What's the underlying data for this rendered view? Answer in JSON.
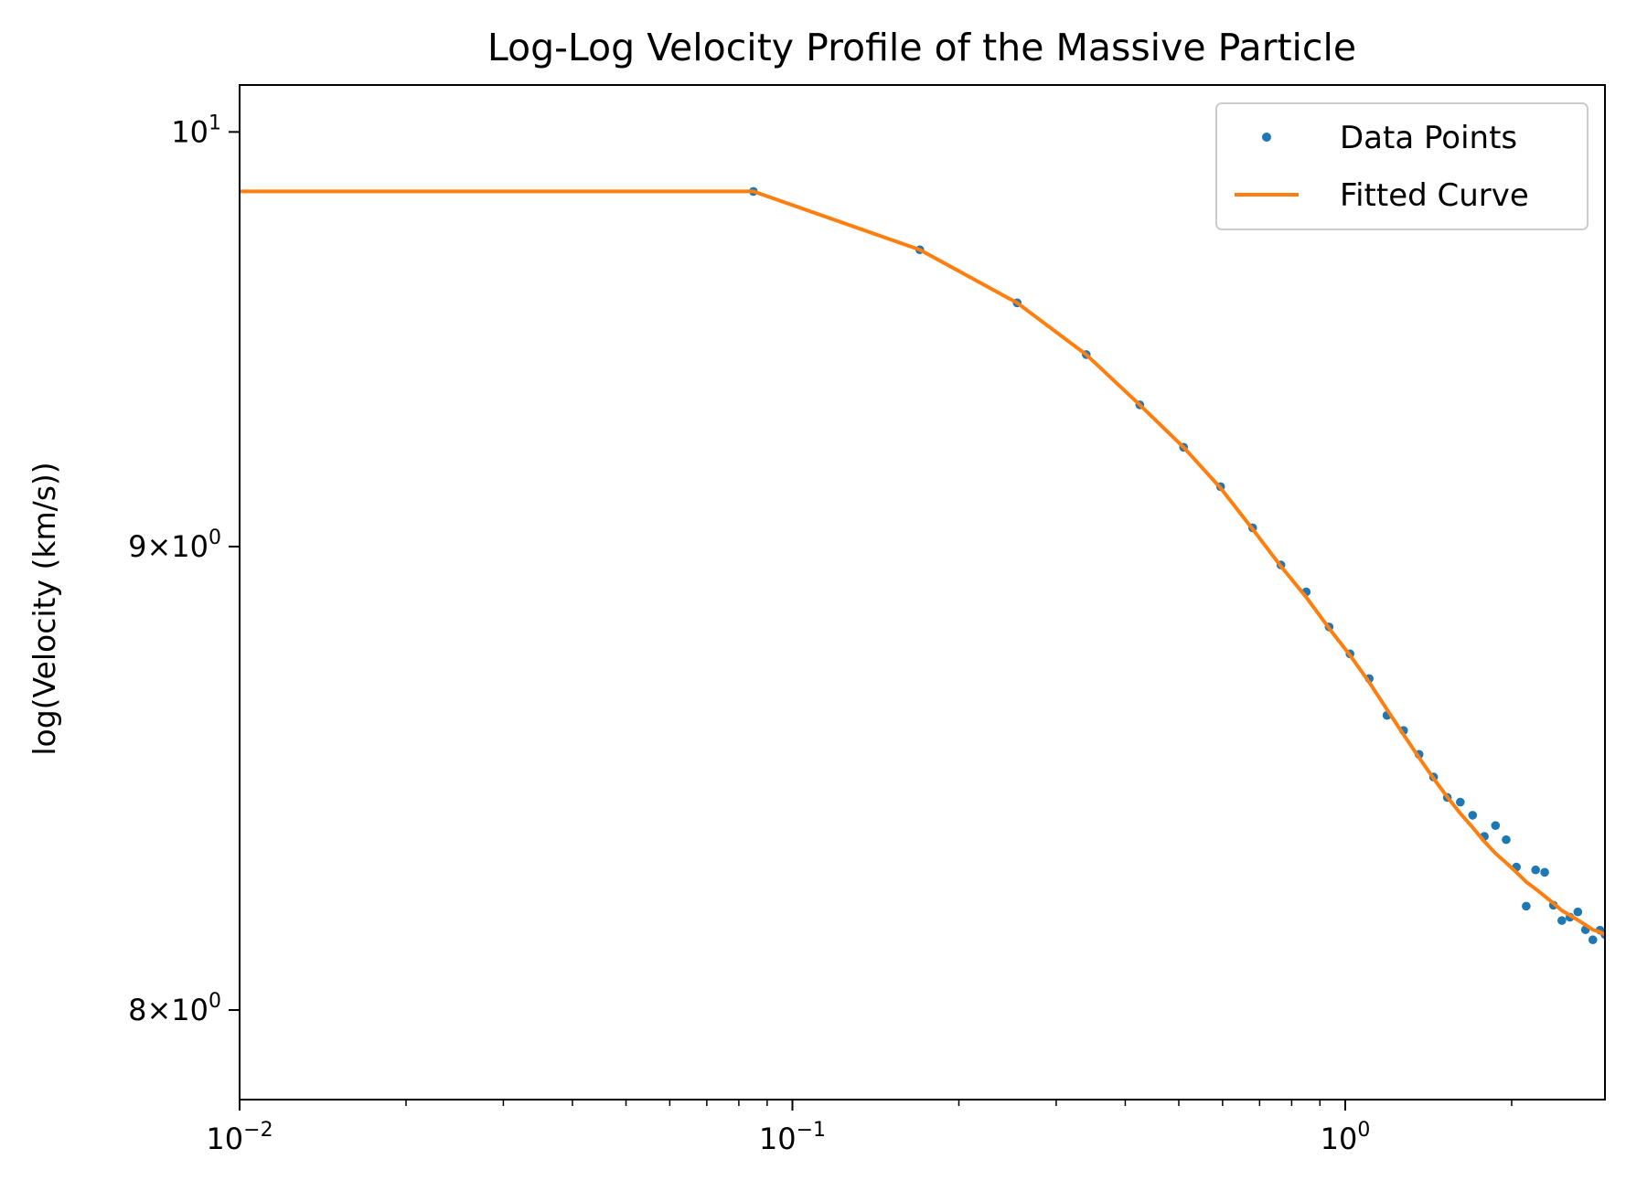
{
  "chart_data": {
    "type": "line",
    "title": "Log-Log Velocity Profile of the Massive Particle",
    "xlabel": "",
    "ylabel": "log(Velocity (km/s))",
    "xscale": "log",
    "yscale": "log",
    "xlim": [
      0.01,
      2.95
    ],
    "ylim": [
      7.82,
      10.12
    ],
    "x_ticks": [
      {
        "value": 0.01,
        "base": "10",
        "exp": "−2"
      },
      {
        "value": 0.1,
        "base": "10",
        "exp": "−1"
      },
      {
        "value": 1,
        "base": "10",
        "exp": "0"
      }
    ],
    "y_ticks": [
      {
        "value": 8,
        "prefix": "8×",
        "base": "10",
        "exp": "0"
      },
      {
        "value": 9,
        "prefix": "9×",
        "base": "10",
        "exp": "0"
      },
      {
        "value": 10,
        "prefix": "",
        "base": "10",
        "exp": "1"
      }
    ],
    "grid": false,
    "legend_position": "top-right",
    "series": [
      {
        "name": "Data Points",
        "style": "markers",
        "color": "#1f77b4",
        "x": [
          0.085,
          0.17,
          0.255,
          0.34,
          0.425,
          0.51,
          0.595,
          0.68,
          0.765,
          0.85,
          0.935,
          1.02,
          1.105,
          1.19,
          1.275,
          1.36,
          1.445,
          1.53,
          1.615,
          1.7,
          1.785,
          1.87,
          1.955,
          2.04,
          2.125,
          2.21,
          2.295,
          2.38,
          2.465,
          2.55,
          2.635,
          2.72,
          2.805,
          2.89,
          2.95
        ],
        "y": [
          9.85,
          9.705,
          9.575,
          9.45,
          9.33,
          9.23,
          9.138,
          9.043,
          8.958,
          8.897,
          8.818,
          8.758,
          8.703,
          8.622,
          8.589,
          8.537,
          8.488,
          8.444,
          8.434,
          8.406,
          8.361,
          8.384,
          8.354,
          8.296,
          8.214,
          8.29,
          8.285,
          8.216,
          8.184,
          8.191,
          8.202,
          8.165,
          8.144,
          8.164,
          8.155
        ]
      },
      {
        "name": "Fitted Curve",
        "style": "line",
        "color": "#ff7f0e",
        "x": [
          0.01,
          0.085,
          0.17,
          0.255,
          0.34,
          0.425,
          0.51,
          0.595,
          0.68,
          0.765,
          0.85,
          0.935,
          1.02,
          1.105,
          1.19,
          1.275,
          1.36,
          1.445,
          1.53,
          1.615,
          1.7,
          1.785,
          1.87,
          1.955,
          2.04,
          2.125,
          2.21,
          2.295,
          2.38,
          2.465,
          2.55,
          2.635,
          2.72,
          2.805,
          2.89,
          2.95
        ],
        "y": [
          9.85,
          9.85,
          9.705,
          9.575,
          9.45,
          9.33,
          9.23,
          9.135,
          9.04,
          8.955,
          8.885,
          8.815,
          8.755,
          8.695,
          8.635,
          8.58,
          8.53,
          8.485,
          8.445,
          8.41,
          8.38,
          8.35,
          8.325,
          8.305,
          8.285,
          8.265,
          8.25,
          8.235,
          8.22,
          8.205,
          8.195,
          8.185,
          8.175,
          8.165,
          8.16,
          8.155
        ]
      }
    ]
  }
}
